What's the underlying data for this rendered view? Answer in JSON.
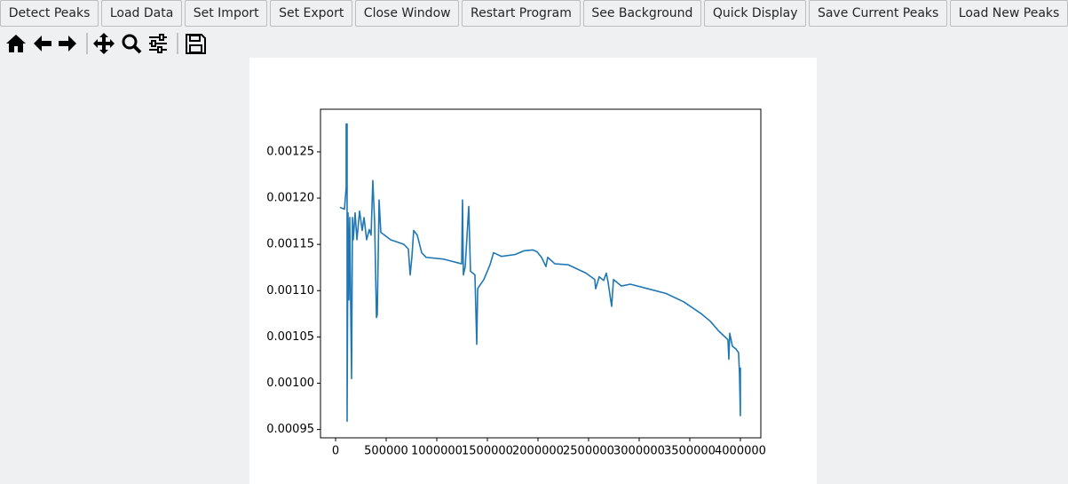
{
  "toolbar": {
    "buttons": [
      "Detect Peaks",
      "Load Data",
      "Set Import",
      "Set Export",
      "Close Window",
      "Restart Program",
      "See Background",
      "Quick Display",
      "Save Current Peaks",
      "Load New Peaks"
    ]
  },
  "chart_data": {
    "type": "line",
    "x": [
      44000,
      88000,
      105000,
      105000,
      114000,
      114000,
      123000,
      132000,
      140000,
      149000,
      158000,
      167000,
      175000,
      193000,
      211000,
      237000,
      263000,
      281000,
      307000,
      333000,
      351000,
      368000,
      386000,
      404000,
      412000,
      430000,
      447000,
      544000,
      675000,
      719000,
      737000,
      754000,
      772000,
      807000,
      851000,
      895000,
      1070000,
      1246000,
      1254000,
      1263000,
      1281000,
      1316000,
      1333000,
      1377000,
      1395000,
      1404000,
      1421000,
      1465000,
      1526000,
      1561000,
      1640000,
      1772000,
      1860000,
      1947000,
      1991000,
      2035000,
      2079000,
      2096000,
      2167000,
      2298000,
      2474000,
      2561000,
      2570000,
      2605000,
      2649000,
      2675000,
      2693000,
      2728000,
      2746000,
      2825000,
      2912000,
      3088000,
      3263000,
      3439000,
      3614000,
      3702000,
      3789000,
      3877000,
      3886000,
      3895000,
      3921000,
      3956000,
      3982000,
      3991000,
      4000000,
      4000000
    ],
    "series": [
      {
        "color": "#1f77b4",
        "values": [
          0.00119,
          0.001188,
          0.001212,
          0.00128,
          0.00128,
          0.000959,
          0.001184,
          0.00109,
          0.001179,
          0.001088,
          0.001005,
          0.001179,
          0.001155,
          0.001184,
          0.001155,
          0.001186,
          0.001165,
          0.001179,
          0.001155,
          0.001166,
          0.00116,
          0.001219,
          0.001174,
          0.001071,
          0.001074,
          0.001198,
          0.001163,
          0.001155,
          0.00115,
          0.001145,
          0.001117,
          0.001136,
          0.001165,
          0.00116,
          0.001141,
          0.001136,
          0.001134,
          0.001129,
          0.001198,
          0.001117,
          0.001126,
          0.001191,
          0.001121,
          0.001117,
          0.001042,
          0.001102,
          0.001105,
          0.001112,
          0.001128,
          0.001141,
          0.001137,
          0.001139,
          0.001143,
          0.001144,
          0.001142,
          0.001136,
          0.001126,
          0.001136,
          0.001129,
          0.001128,
          0.001119,
          0.001112,
          0.001102,
          0.001115,
          0.001111,
          0.001119,
          0.001109,
          0.001083,
          0.001112,
          0.001105,
          0.001107,
          0.001102,
          0.001097,
          0.001088,
          0.001075,
          0.001067,
          0.001056,
          0.001047,
          0.001026,
          0.001054,
          0.00104,
          0.001037,
          0.001033,
          0.001011,
          0.000965,
          0.001017
        ]
      }
    ],
    "xlim": [
      -149000,
      4202000
    ],
    "xticks": [
      0,
      500000,
      1000000,
      1500000,
      2000000,
      2500000,
      3000000,
      3500000,
      4000000
    ],
    "ylim": [
      0.000941,
      0.001296
    ],
    "yticks": [
      0.00095,
      {
        "value": 0.001,
        "label": "0.00100"
      },
      0.00105,
      {
        "value": 0.0011,
        "label": "0.00110"
      },
      0.00115,
      {
        "value": 0.0012,
        "label": "0.00120"
      },
      0.00125
    ],
    "grid": false
  }
}
